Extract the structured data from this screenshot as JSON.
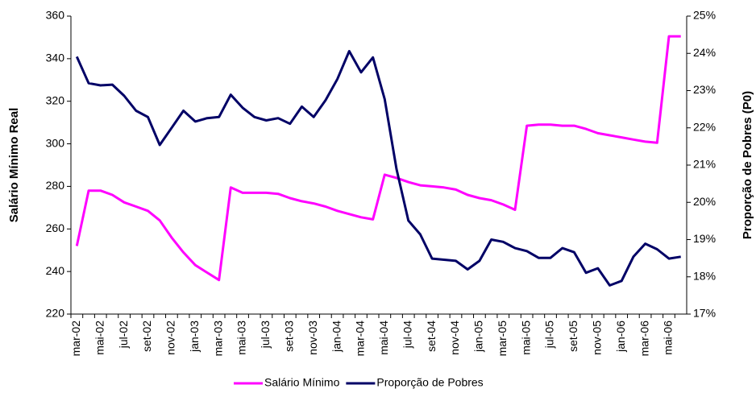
{
  "chart_data": {
    "type": "line",
    "y_label": "Salário Mínimo Real",
    "y2_label": "Proporção de Pobres (P0)",
    "categories": [
      "mar-02",
      null,
      "mai-02",
      null,
      "jul-02",
      null,
      "set-02",
      null,
      "nov-02",
      null,
      "jan-03",
      null,
      "mar-03",
      null,
      "mai-03",
      null,
      "jul-03",
      null,
      "set-03",
      null,
      "nov-03",
      null,
      "jan-04",
      null,
      "mar-04",
      null,
      "mai-04",
      null,
      "jul-04",
      null,
      "set-04",
      null,
      "nov-04",
      null,
      "jan-05",
      null,
      "mar-05",
      null,
      "mai-05",
      null,
      "jul-05",
      null,
      "set-05",
      null,
      "nov-05",
      null,
      "jan-06",
      null,
      "mar-06",
      null,
      "mai-06",
      null
    ],
    "series": [
      {
        "name": "Salário Mínimo",
        "color": "#ff00ff",
        "values": [
          252,
          278,
          278,
          276,
          272.5,
          270.5,
          268.5,
          264,
          256,
          249,
          243,
          239.5,
          236,
          279.5,
          277,
          277,
          277,
          276.5,
          274.5,
          273,
          272,
          270.5,
          268.5,
          267,
          265.5,
          264.5,
          285.5,
          284,
          282,
          280.5,
          280,
          279.5,
          278.5,
          276,
          274.5,
          273.5,
          271.5,
          269,
          308.5,
          309,
          309,
          308.5,
          308.5,
          307,
          305,
          304,
          303,
          302,
          301,
          300.5,
          350.5,
          350.5
        ]
      },
      {
        "name": "Proporção de Pobres",
        "color": "#000066",
        "axis": "y2",
        "values": [
          23.91,
          23.2,
          23.14,
          23.16,
          22.86,
          22.46,
          22.29,
          21.54,
          22.0,
          22.46,
          22.17,
          22.26,
          22.29,
          22.89,
          22.54,
          22.29,
          22.2,
          22.26,
          22.11,
          22.57,
          22.29,
          22.74,
          23.31,
          24.06,
          23.49,
          23.89,
          22.77,
          20.89,
          19.51,
          19.14,
          18.49,
          18.46,
          18.43,
          18.2,
          18.43,
          19.0,
          18.94,
          18.77,
          18.69,
          18.51,
          18.51,
          18.77,
          18.66,
          18.11,
          18.23,
          17.77,
          17.89,
          18.54,
          18.89,
          18.74,
          18.49,
          18.54
        ]
      }
    ],
    "ylim": [
      220,
      360
    ],
    "yticks": [
      220,
      240,
      260,
      280,
      300,
      320,
      340,
      360
    ],
    "y2lim": [
      17,
      25
    ],
    "y2ticks": [
      {
        "value": 17,
        "label": "17%"
      },
      {
        "value": 18,
        "label": "18%"
      },
      {
        "value": 19,
        "label": "19%"
      },
      {
        "value": 20,
        "label": "20%"
      },
      {
        "value": 21,
        "label": "21%"
      },
      {
        "value": 22,
        "label": "22%"
      },
      {
        "value": 23,
        "label": "23%"
      },
      {
        "value": 24,
        "label": "24%"
      },
      {
        "value": 25,
        "label": "25%"
      }
    ],
    "legend": "bottom"
  }
}
